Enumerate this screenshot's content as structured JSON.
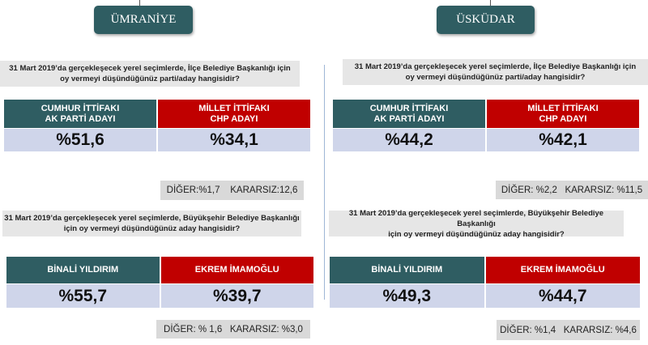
{
  "panels": [
    {
      "district": "ÜMRANİYE",
      "district_question": [
        "31 Mart 2019’da gerçekleşecek yerel seçimlerde, İlçe Belediye Başkanlığı için",
        "oy vermeyi düşündüğünüz parti/aday hangisidir?"
      ],
      "district_headers": [
        [
          "CUMHUR İTTİFAKI",
          "AK PARTİ ADAYI"
        ],
        [
          "MİLLET İTTİFAKI",
          "CHP ADAYI"
        ]
      ],
      "district_values": [
        "%51,6",
        "%34,1"
      ],
      "district_other": "DİĞER:%1,7    KARARSIZ:12,6",
      "metro_question": [
        "31 Mart 2019’da gerçekleşecek yerel seçimlerde, Büyükşehir Belediye Başkanlığı",
        "için oy vermeyi düşündüğünüz aday hangisidir?"
      ],
      "metro_headers": [
        "BİNALİ YILDIRIM",
        "EKREM İMAMOĞLU"
      ],
      "metro_values": [
        "%55,7",
        "%39,7"
      ],
      "metro_other": "DİĞER: % 1,6   KARARSIZ: %3,0"
    },
    {
      "district": "ÜSKÜDAR",
      "district_question": [
        "31 Mart 2019’da gerçekleşecek yerel seçimlerde, İlçe Belediye Başkanlığı için",
        "oy vermeyi düşündüğünüz parti/aday hangisidir?"
      ],
      "district_headers": [
        [
          "CUMHUR İTTİFAKI",
          "AK PARTİ ADAYI"
        ],
        [
          "MİLLET İTTİFAKI",
          "CHP ADAYI"
        ]
      ],
      "district_values": [
        "%44,2",
        "%42,1"
      ],
      "district_other": "DİĞER: %2,2   KARARSIZ: %11,5",
      "metro_question": [
        "31 Mart 2019’da gerçekleşecek yerel seçimlerde, Büyükşehir Belediye Başkanlığı",
        "için oy vermeyi düşündüğünüz aday hangisidir?"
      ],
      "metro_headers": [
        "BİNALİ YILDIRIM",
        "EKREM İMAMOĞLU"
      ],
      "metro_values": [
        "%49,3",
        "%44,7"
      ],
      "metro_other": "DİĞER: %1,4   KARARSIZ: %4,6"
    }
  ],
  "colors": {
    "cumhur": "#2f5d62",
    "millet": "#c00000",
    "value_bg": "#cfd5ea",
    "question_bg": "#e6e6e6"
  }
}
